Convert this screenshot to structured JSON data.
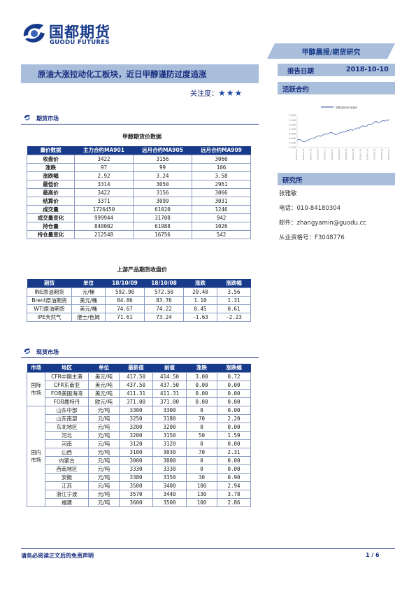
{
  "brand": {
    "name_cn": "国都期货",
    "name_en": "GUODU FUTURES"
  },
  "report_type": "甲醇晨报/期货研究",
  "title": "原油大涨拉动化工板块，近日甲醇谨防过度追涨",
  "attention": {
    "label": "关注度：",
    "stars": "★★★"
  },
  "report_date": {
    "label": "报告日期",
    "value": "2018-10-10"
  },
  "active_contract": {
    "label": "活跃合约",
    "chart_data": {
      "type": "line",
      "title": "",
      "series": [
        {
          "name": "甲醇活跃合约收盘价",
          "values": [
            2520,
            2560,
            2540,
            2480,
            2450,
            2470,
            2500,
            2540,
            2580,
            2620,
            2600,
            2650,
            2700,
            2720,
            2690,
            2740,
            2760,
            2800,
            2780,
            2820,
            2860,
            2840,
            2800,
            2760,
            2790,
            2830,
            2850,
            2880,
            2870,
            2900,
            2930,
            2960,
            2980,
            2950,
            2990,
            3030,
            3060,
            3040,
            3100,
            3150,
            3130,
            3120,
            3180,
            3220,
            3200,
            3250,
            3300,
            3350,
            3290,
            3300,
            3320,
            3380,
            3350,
            3400,
            3380,
            3422
          ]
        }
      ],
      "ylim": [
        2200,
        3600
      ],
      "ytick_labels": [
        "3,600",
        "3,400",
        "3,200",
        "3,000",
        "2,800",
        "2,600",
        "2,400",
        "2,200"
      ],
      "xtick_labels": [
        "2018-01-02",
        "2018-01-23",
        "2018-02-13",
        "2018-03-06",
        "2018-03-27",
        "2018-04-17",
        "2018-05-08",
        "2018-05-29",
        "2018-06-19",
        "2018-07-10",
        "2018-07-31",
        "2018-08-21",
        "2018-09-11",
        "2018-10-02"
      ]
    }
  },
  "research": {
    "label": "研究所",
    "analyst": "张雅敏",
    "phone": "电话：010-84180304",
    "email": "邮件：zhangyamin@guodu.cc",
    "license": "从业资格号：F3048776"
  },
  "futures_section": {
    "label": "期货市场"
  },
  "futures_table": {
    "caption": "甲醇期货价数据",
    "headers": [
      "量价数据",
      "主力合约MA901",
      "远月合约MA905",
      "远月合约MA909"
    ],
    "rows": [
      [
        "收盘价",
        "3422",
        "3156",
        "3066"
      ],
      [
        "涨跌",
        "97",
        "99",
        "106"
      ],
      [
        "涨跌幅",
        "2.92",
        "3.24",
        "3.58"
      ],
      [
        "最低价",
        "3314",
        "3050",
        "2961"
      ],
      [
        "最高价",
        "3422",
        "3156",
        "3066"
      ],
      [
        "结算价",
        "3371",
        "3099",
        "3031"
      ],
      [
        "成交量",
        "1726450",
        "61020",
        "1246"
      ],
      [
        "成交量变化",
        "999944",
        "31708",
        "942"
      ],
      [
        "持仓量",
        "840002",
        "61988",
        "1026"
      ],
      [
        "持仓量变化",
        "212548",
        "16756",
        "542"
      ]
    ]
  },
  "upstream_table": {
    "caption": "上游产品期货收盘价",
    "headers": [
      "期货",
      "单位",
      "18/10/09",
      "18/10/08",
      "涨跌",
      "涨跌幅"
    ],
    "rows": [
      [
        "INE原油期货",
        "元/桶",
        "592.90",
        "572.50",
        "20.40",
        "3.56"
      ],
      [
        "Brent原油期货",
        "美元/桶",
        "84.86",
        "83.76",
        "1.10",
        "1.31"
      ],
      [
        "WTI原油期货",
        "美元/桶",
        "74.67",
        "74.22",
        "0.45",
        "0.61"
      ],
      [
        "IPE天然气",
        "便士/色姆",
        "71.61",
        "73.24",
        "-1.63",
        "-2.23"
      ]
    ]
  },
  "spot_section": {
    "label": "现货市场"
  },
  "spot_table": {
    "headers": [
      "市场",
      "地区",
      "单位",
      "最新值",
      "前值",
      "涨跌",
      "涨跌幅"
    ],
    "groups": [
      {
        "name": "国际市场",
        "rows": [
          [
            "CFR中国主港",
            "美元/吨",
            "417.50",
            "414.50",
            "3.00",
            "0.72"
          ],
          [
            "CFR东南亚",
            "美元/吨",
            "437.50",
            "437.50",
            "0.00",
            "0.00"
          ],
          [
            "FOB美国海湾",
            "美元/吨",
            "411.31",
            "411.31",
            "0.00",
            "0.00"
          ],
          [
            "FOB鹿特丹",
            "欧元/吨",
            "371.00",
            "371.00",
            "0.00",
            "0.00"
          ]
        ]
      },
      {
        "name": "国内市场",
        "rows": [
          [
            "山东中部",
            "元/吨",
            "3300",
            "3300",
            "0",
            "0.00"
          ],
          [
            "山东南部",
            "元/吨",
            "3250",
            "3180",
            "70",
            "2.20"
          ],
          [
            "东北地区",
            "元/吨",
            "3200",
            "3200",
            "0",
            "0.00"
          ],
          [
            "河北",
            "元/吨",
            "3200",
            "3150",
            "50",
            "1.59"
          ],
          [
            "河南",
            "元/吨",
            "3120",
            "3120",
            "0",
            "0.00"
          ],
          [
            "山西",
            "元/吨",
            "3100",
            "3030",
            "70",
            "2.31"
          ],
          [
            "内蒙古",
            "元/吨",
            "3000",
            "3000",
            "0",
            "0.00"
          ],
          [
            "西南地区",
            "元/吨",
            "3330",
            "3330",
            "0",
            "0.00"
          ],
          [
            "安徽",
            "元/吨",
            "3380",
            "3350",
            "30",
            "0.90"
          ],
          [
            "江苏",
            "元/吨",
            "3500",
            "3400",
            "100",
            "2.94"
          ],
          [
            "浙江宁波",
            "元/吨",
            "3570",
            "3440",
            "130",
            "3.78"
          ],
          [
            "福建",
            "元/吨",
            "3600",
            "3500",
            "100",
            "2.86"
          ]
        ]
      }
    ]
  },
  "footer": {
    "disclaimer": "请务必阅读正文后的免责声明",
    "page": "1 / 6"
  },
  "colors": {
    "brand_blue": "#173a8a",
    "header_band": "#a9bedb",
    "line": "#2a4fa0"
  }
}
